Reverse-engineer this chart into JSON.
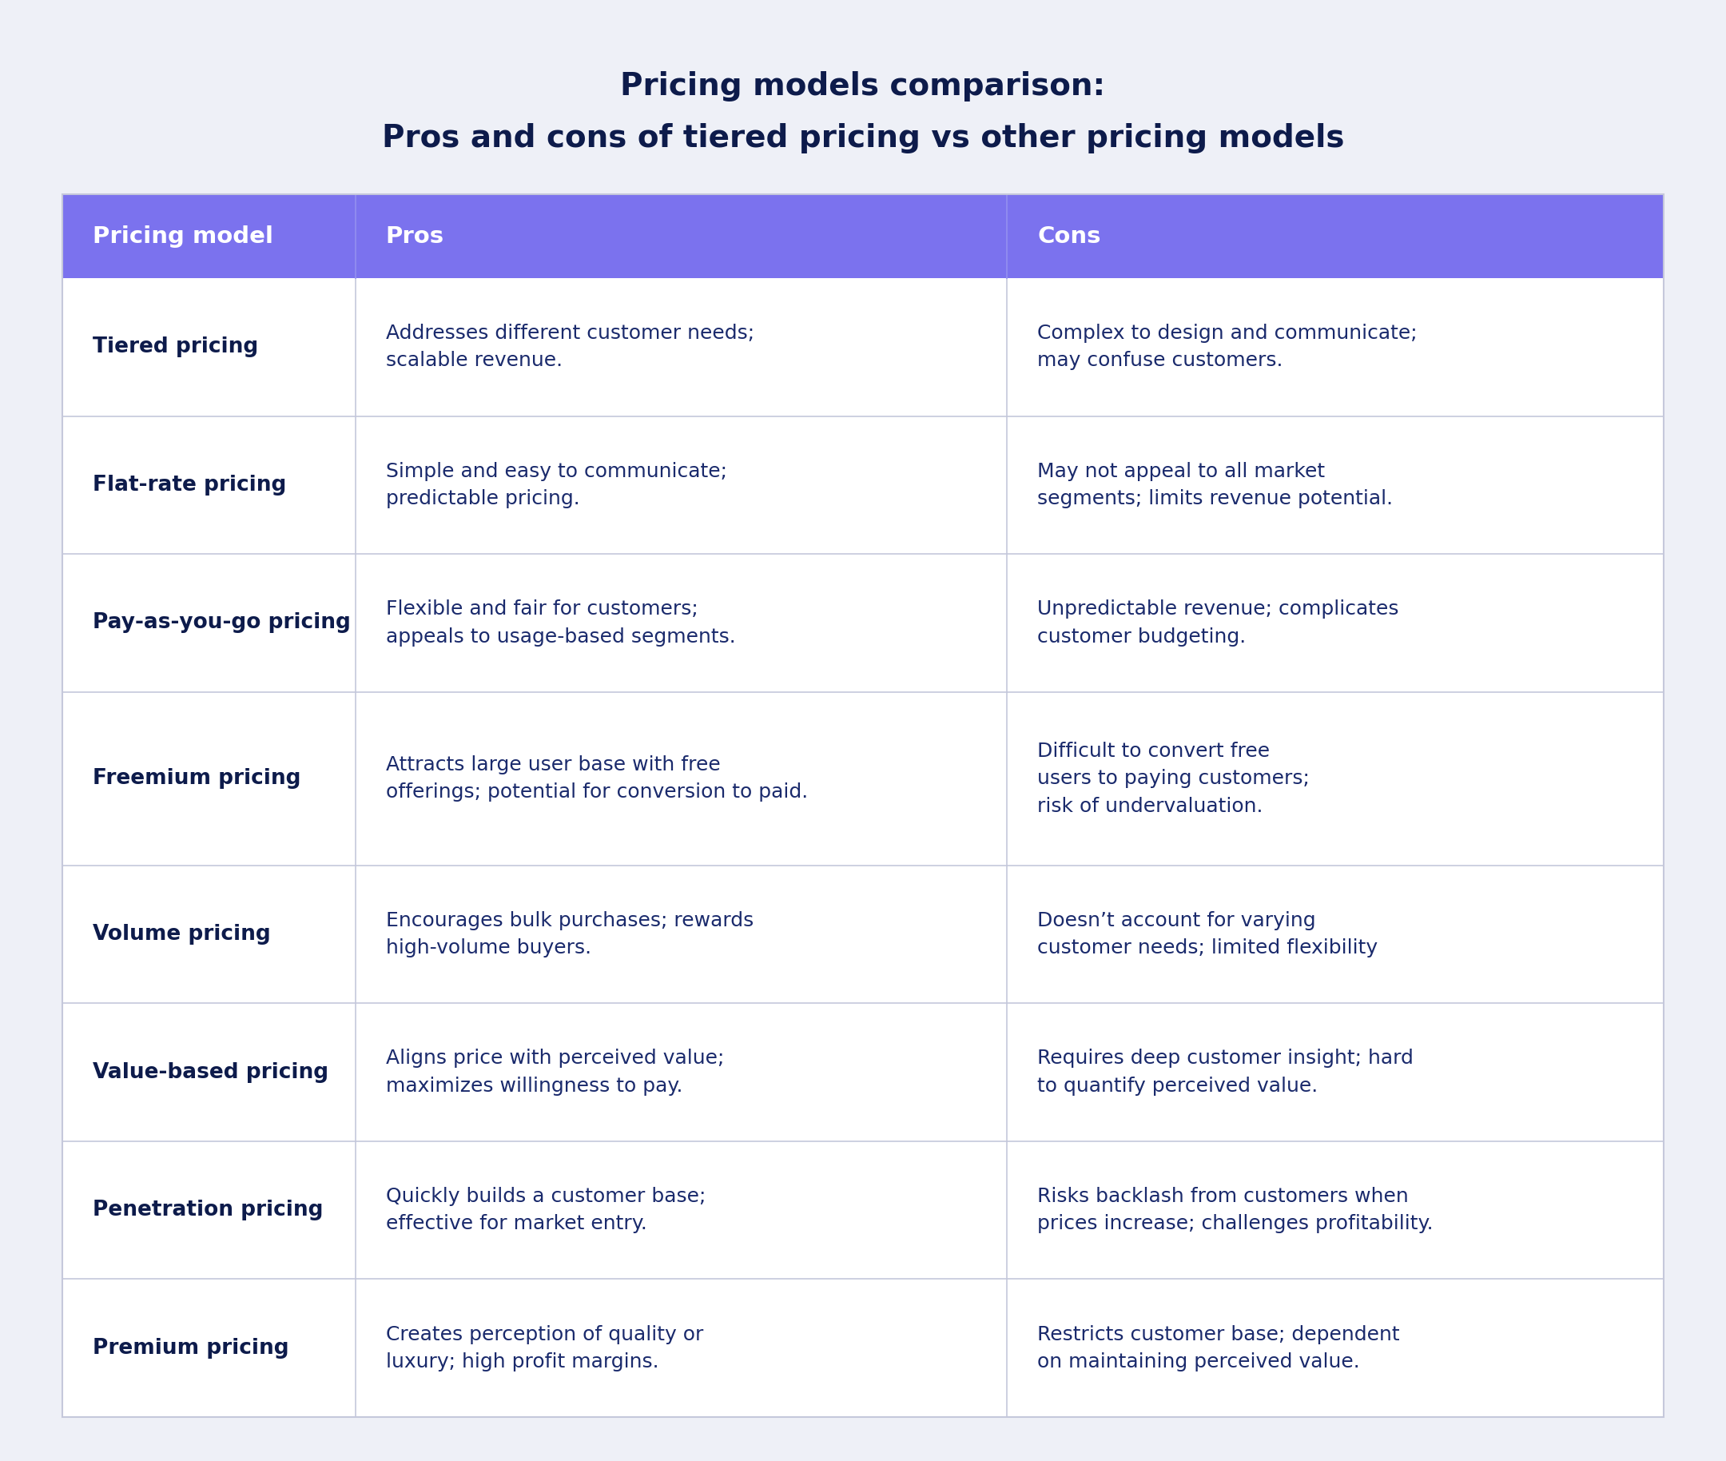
{
  "title_line1": "Pricing models comparison:",
  "title_line2": "Pros and cons of tiered pricing vs other pricing models",
  "background_color": "#eef0f7",
  "header_color": "#7b72ee",
  "header_text_color": "#ffffff",
  "table_bg_color": "#ffffff",
  "border_color": "#c5c8db",
  "model_text_color": "#0d1b4b",
  "content_text_color": "#1a2a6c",
  "title_color": "#0d1b4b",
  "headers": [
    "Pricing model",
    "Pros",
    "Cons"
  ],
  "rows": [
    {
      "model": "Tiered pricing",
      "pros": "Addresses different customer needs;\nscalable revenue.",
      "cons": "Complex to design and communicate;\nmay confuse customers.",
      "lines": 2
    },
    {
      "model": "Flat-rate pricing",
      "pros": "Simple and easy to communicate;\npredictable pricing.",
      "cons": "May not appeal to all market\nsegments; limits revenue potential.",
      "lines": 2
    },
    {
      "model": "Pay-as-you-go pricing",
      "pros": "Flexible and fair for customers;\nappeals to usage-based segments.",
      "cons": "Unpredictable revenue; complicates\ncustomer budgeting.",
      "lines": 2
    },
    {
      "model": "Freemium pricing",
      "pros": "Attracts large user base with free\nofferings; potential for conversion to paid.",
      "cons": "Difficult to convert free\nusers to paying customers;\nrisk of undervaluation.",
      "lines": 3
    },
    {
      "model": "Volume pricing",
      "pros": "Encourages bulk purchases; rewards\nhigh-volume buyers.",
      "cons": "Doesn’t account for varying\ncustomer needs; limited flexibility",
      "lines": 2
    },
    {
      "model": "Value-based pricing",
      "pros": "Aligns price with perceived value;\nmaximizes willingness to pay.",
      "cons": "Requires deep customer insight; hard\nto quantify perceived value.",
      "lines": 2
    },
    {
      "model": "Penetration pricing",
      "pros": "Quickly builds a customer base;\neffective for market entry.",
      "cons": "Risks backlash from customers when\nprices increase; challenges profitability.",
      "lines": 2
    },
    {
      "model": "Premium pricing",
      "pros": "Creates perception of quality or\nluxury; high profit margins.",
      "cons": "Restricts customer base; dependent\non maintaining perceived value.",
      "lines": 2
    }
  ],
  "title_fontsize": 28,
  "header_fontsize": 21,
  "model_fontsize": 19,
  "content_fontsize": 18
}
